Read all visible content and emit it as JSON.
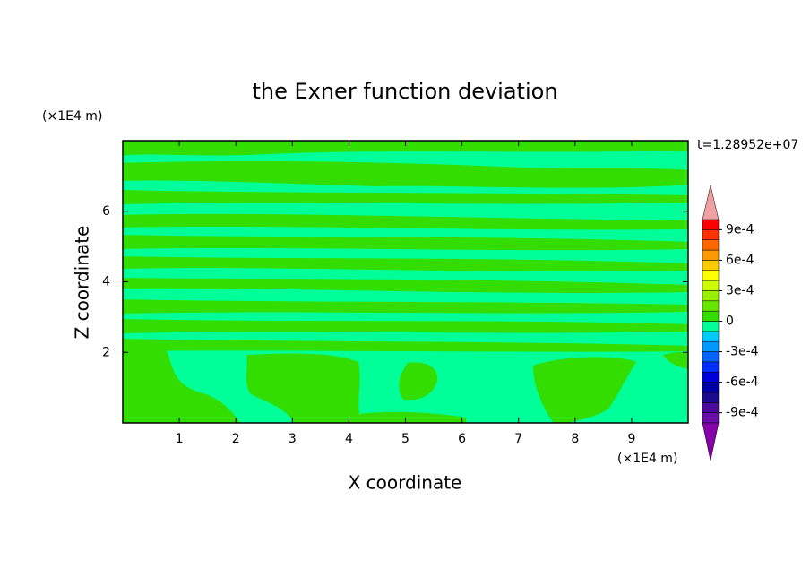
{
  "chart_data": {
    "type": "contour",
    "title": "the Exner function deviation",
    "x_label": "X coordinate",
    "y_label": "Z coordinate",
    "x_unit": "(×1E4 m)",
    "y_unit": "(×1E4 m)",
    "annotation": "t=1.28952e+07",
    "xlim": [
      0,
      10
    ],
    "ylim": [
      0,
      8
    ],
    "xticks": [
      1,
      2,
      3,
      4,
      5,
      6,
      7,
      8,
      9
    ],
    "yticks": [
      2,
      4,
      6
    ],
    "colorbar": {
      "levels": [
        -0.001,
        -0.0009,
        -0.0008,
        -0.0007,
        -0.0006,
        -0.0005,
        -0.0004,
        -0.0003,
        -0.0002,
        -0.0001,
        0,
        0.0001,
        0.0002,
        0.0003,
        0.0004,
        0.0005,
        0.0006,
        0.0007,
        0.0008,
        0.0009,
        0.001
      ],
      "colors": [
        "#6a0dad",
        "#4a0a9e",
        "#1a0a90",
        "#0000a8",
        "#0000dd",
        "#0030ff",
        "#0066ff",
        "#0099ff",
        "#00ccff",
        "#00ff99",
        "#33dd00",
        "#66e600",
        "#99f000",
        "#ccff00",
        "#ffff00",
        "#ffcc00",
        "#ff9900",
        "#ff6600",
        "#ff3300",
        "#ff0000"
      ],
      "over_color": "#f0a0a0",
      "under_color": "#8800aa",
      "ticks": [
        {
          "value": -0.0009,
          "label": "-9e-4"
        },
        {
          "value": -0.0006,
          "label": "-6e-4"
        },
        {
          "value": -0.0003,
          "label": "-3e-4"
        },
        0,
        {
          "value": 0.0003,
          "label": "3e-4"
        },
        {
          "value": 0.0006,
          "label": "6e-4"
        },
        {
          "value": 0.0009,
          "label": "9e-4"
        }
      ]
    }
  }
}
